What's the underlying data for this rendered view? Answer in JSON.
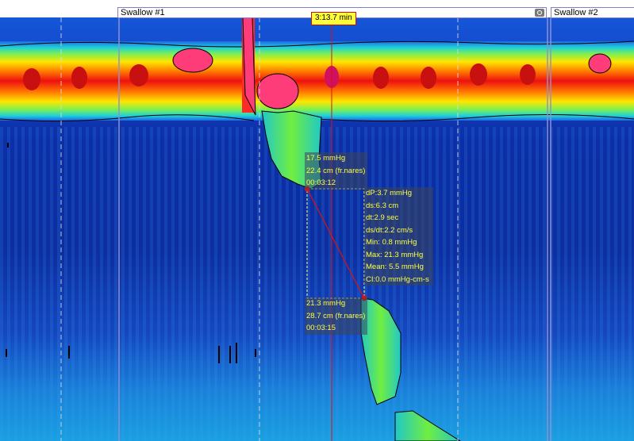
{
  "header": {
    "swallow_1_label": "Swallow #1",
    "swallow_2_label": "Swallow #2",
    "cursor_time": "3:13.7 min"
  },
  "marker_start": {
    "pressure": "17.5 mmHg",
    "position": "22.4 cm (fr.nares)",
    "time": "00:03:12"
  },
  "marker_end": {
    "pressure": "21.3 mmHg",
    "position": "28.7 cm (fr.nares)",
    "time": "00:03:15"
  },
  "measurement": {
    "dP": "dP:3.7 mmHg",
    "ds": "ds:6.3 cm",
    "dt": "dt:2.9 sec",
    "ds_dt": "ds/dt:2.2 cm/s",
    "min": "Min: 0.8 mmHg",
    "max": "Max: 21.3 mmHg",
    "mean": "Mean: 5.5 mmHg",
    "ci": "CI:0.0 mmHg-cm-s"
  },
  "colors": {
    "background_blue": "#0b2a9a",
    "cursor_red": "#e01010",
    "readout_text": "#ffff40",
    "badge_yellow": "#ffff3a"
  },
  "icons": {
    "swallow_settings": "settings-icon"
  }
}
